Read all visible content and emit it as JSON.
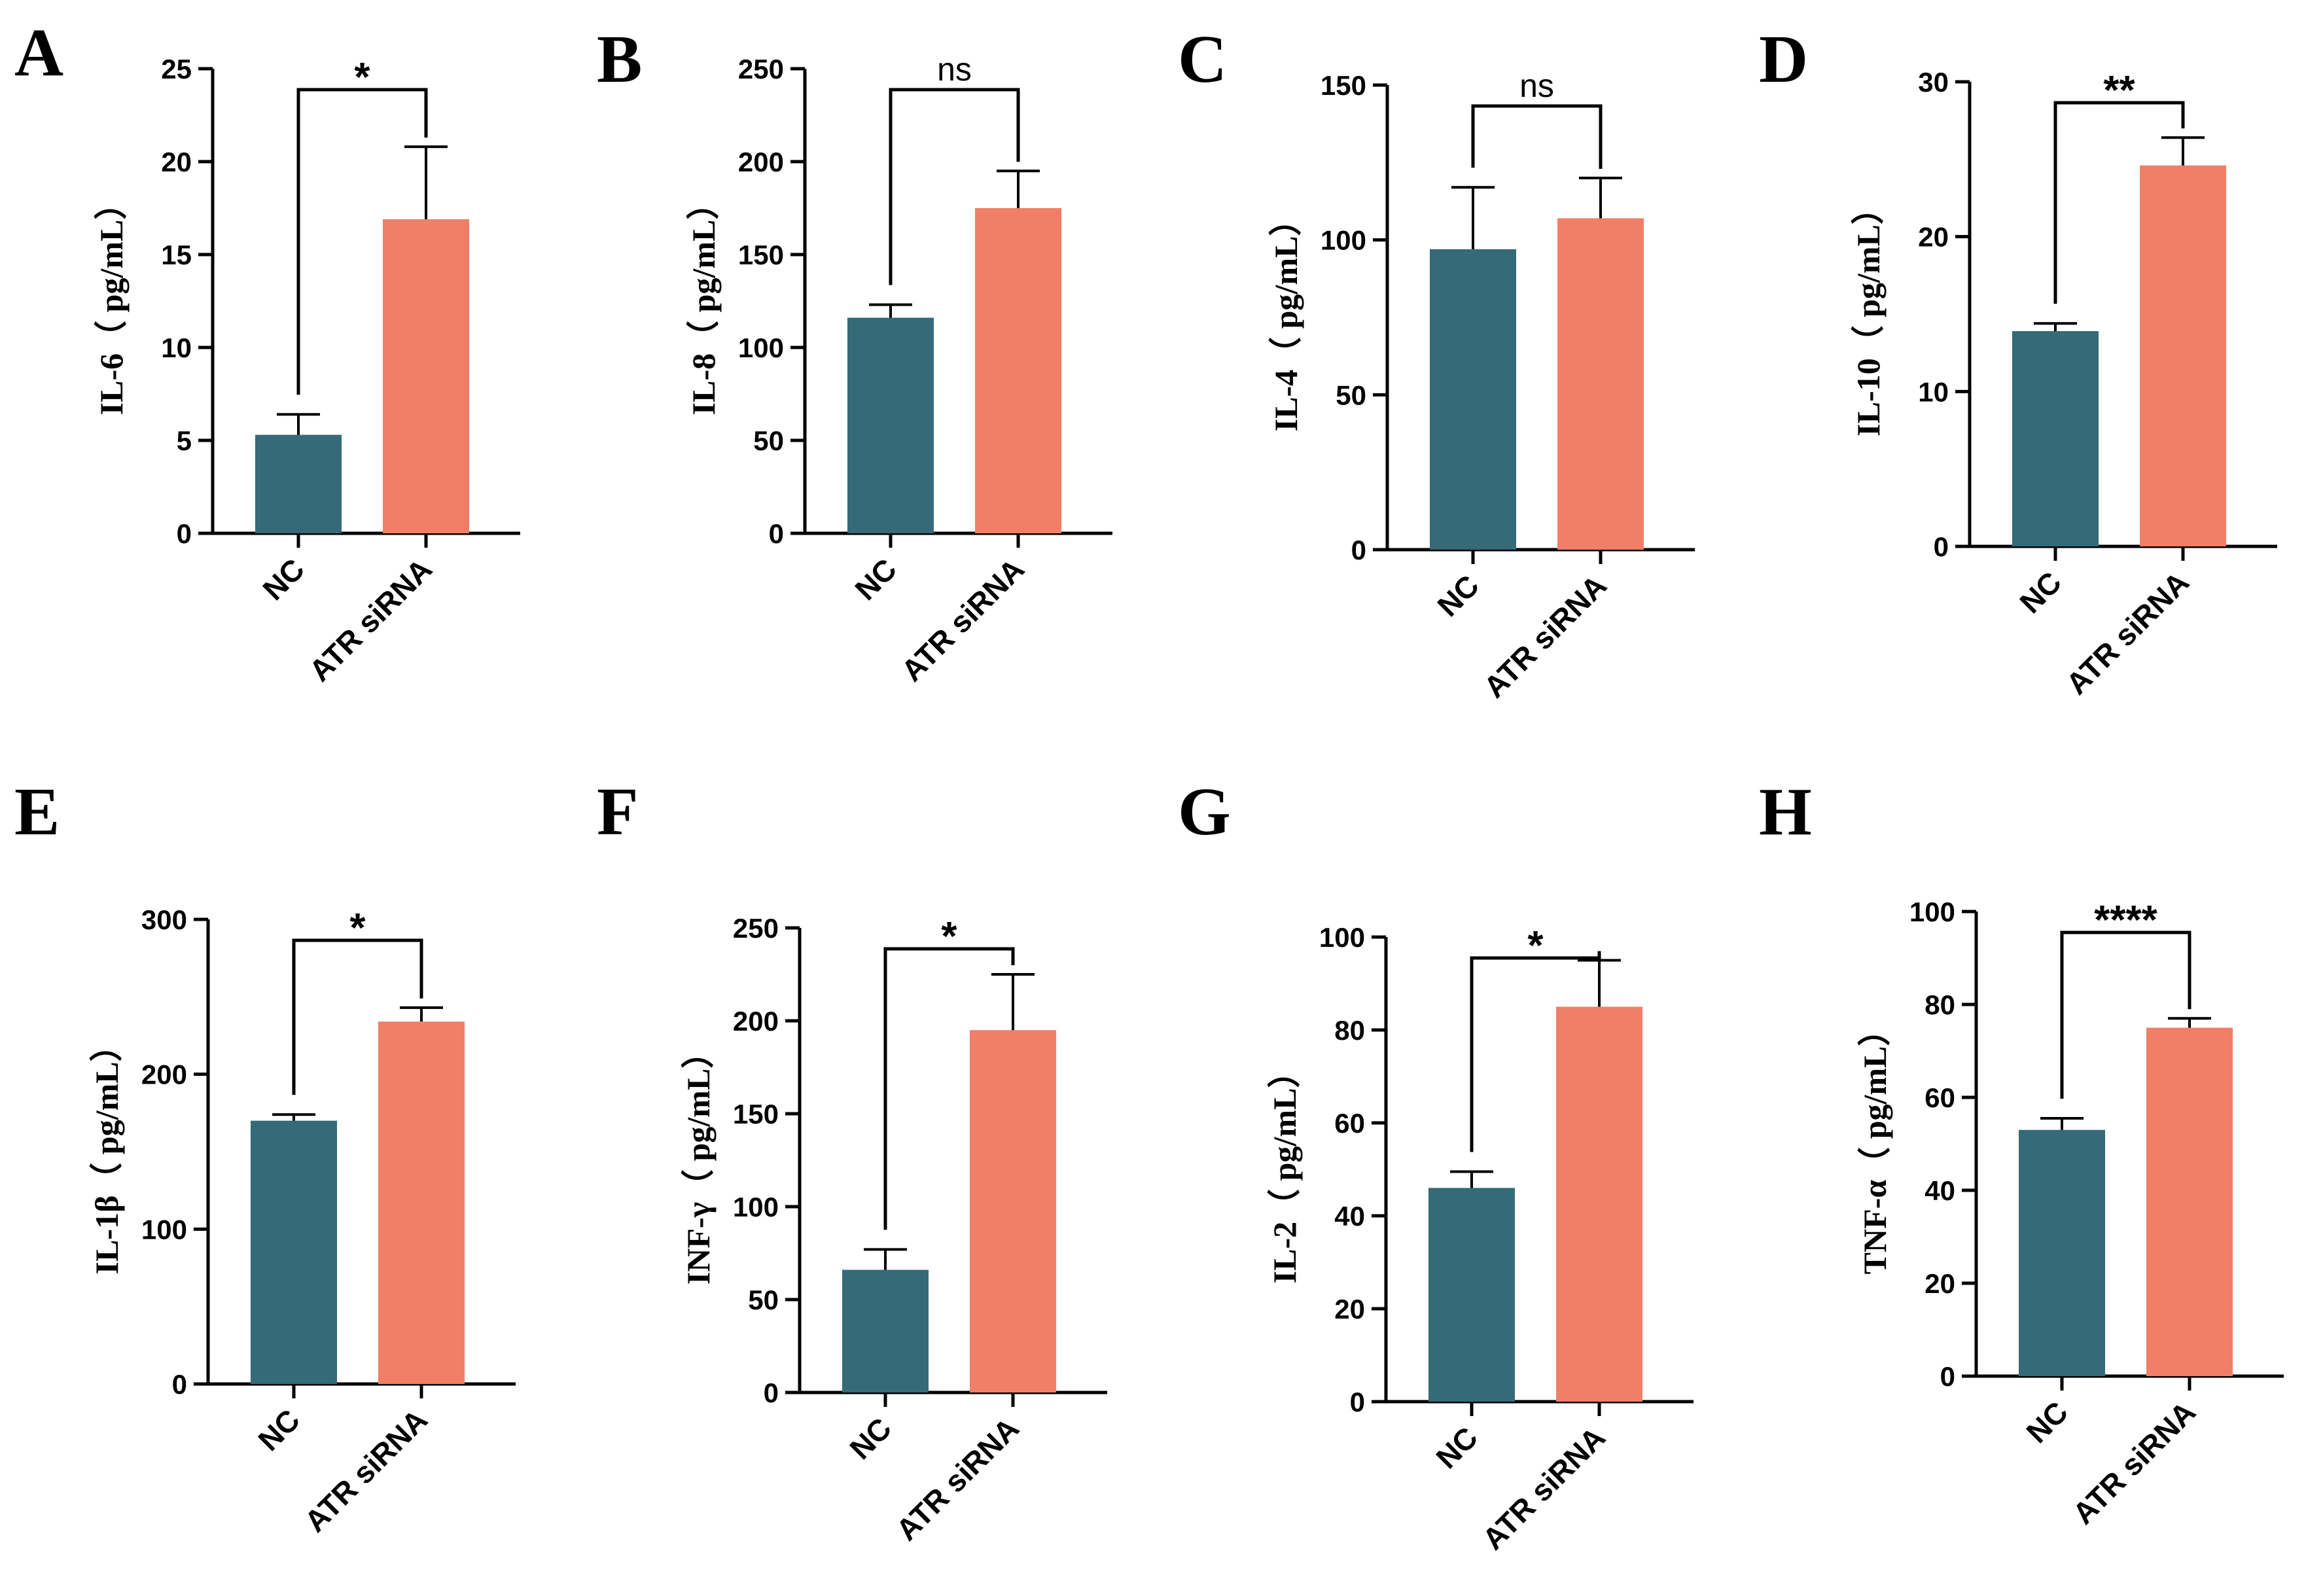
{
  "colors": {
    "nc": "#356a78",
    "atr": "#f07f68",
    "axis": "#000000"
  },
  "chart_data": [
    {
      "panel": "A",
      "type": "bar",
      "ylabel": "IL-6（ pg/mL）",
      "ylim": [
        0,
        25
      ],
      "yticks": [
        0,
        5,
        10,
        15,
        20,
        25
      ],
      "categories": [
        "NC",
        "ATR siRNA"
      ],
      "values": [
        5.3,
        16.9
      ],
      "errors": [
        1.1,
        3.9
      ],
      "significance": "*"
    },
    {
      "panel": "B",
      "type": "bar",
      "ylabel": "IL-8（ pg/mL）",
      "ylim": [
        0,
        250
      ],
      "yticks": [
        0,
        50,
        100,
        150,
        200,
        250
      ],
      "categories": [
        "NC",
        "ATR siRNA"
      ],
      "values": [
        116,
        175
      ],
      "errors": [
        7,
        20
      ],
      "significance": "ns"
    },
    {
      "panel": "C",
      "type": "bar",
      "ylabel": "IL-4（ pg/mL）",
      "ylim": [
        0,
        150
      ],
      "yticks": [
        0,
        50,
        100,
        150
      ],
      "categories": [
        "NC",
        "ATR siRNA"
      ],
      "values": [
        97,
        107
      ],
      "errors": [
        20,
        13
      ],
      "significance": "ns"
    },
    {
      "panel": "D",
      "type": "bar",
      "ylabel": "IL-10（ pg/mL）",
      "ylim": [
        0,
        30
      ],
      "yticks": [
        0,
        10,
        20,
        30
      ],
      "categories": [
        "NC",
        "ATR siRNA"
      ],
      "values": [
        13.9,
        24.6
      ],
      "errors": [
        0.5,
        1.8
      ],
      "significance": "**"
    },
    {
      "panel": "E",
      "type": "bar",
      "ylabel": "IL-1β（ pg/mL）",
      "ylim": [
        0,
        300
      ],
      "yticks": [
        0,
        100,
        200,
        300
      ],
      "categories": [
        "NC",
        "ATR siRNA"
      ],
      "values": [
        170,
        234
      ],
      "errors": [
        4,
        9
      ],
      "significance": "*"
    },
    {
      "panel": "F",
      "type": "bar",
      "ylabel": "INF-γ（ pg/mL）",
      "ylim": [
        0,
        250
      ],
      "yticks": [
        0,
        50,
        100,
        150,
        200,
        250
      ],
      "categories": [
        "NC",
        "ATR siRNA"
      ],
      "values": [
        66,
        195
      ],
      "errors": [
        11,
        30
      ],
      "significance": "*"
    },
    {
      "panel": "G",
      "type": "bar",
      "ylabel": "IL-2（ pg/mL）",
      "ylim": [
        0,
        100
      ],
      "yticks": [
        0,
        20,
        40,
        60,
        80,
        100
      ],
      "categories": [
        "NC",
        "ATR siRNA"
      ],
      "values": [
        46,
        85
      ],
      "errors": [
        3.5,
        10
      ],
      "significance": "*"
    },
    {
      "panel": "H",
      "type": "bar",
      "ylabel": "TNF-α（ pg/mL）",
      "ylim": [
        0,
        100
      ],
      "yticks": [
        0,
        20,
        40,
        60,
        80,
        100
      ],
      "categories": [
        "NC",
        "ATR siRNA"
      ],
      "values": [
        53,
        75
      ],
      "errors": [
        2.5,
        2
      ],
      "significance": "****"
    }
  ]
}
